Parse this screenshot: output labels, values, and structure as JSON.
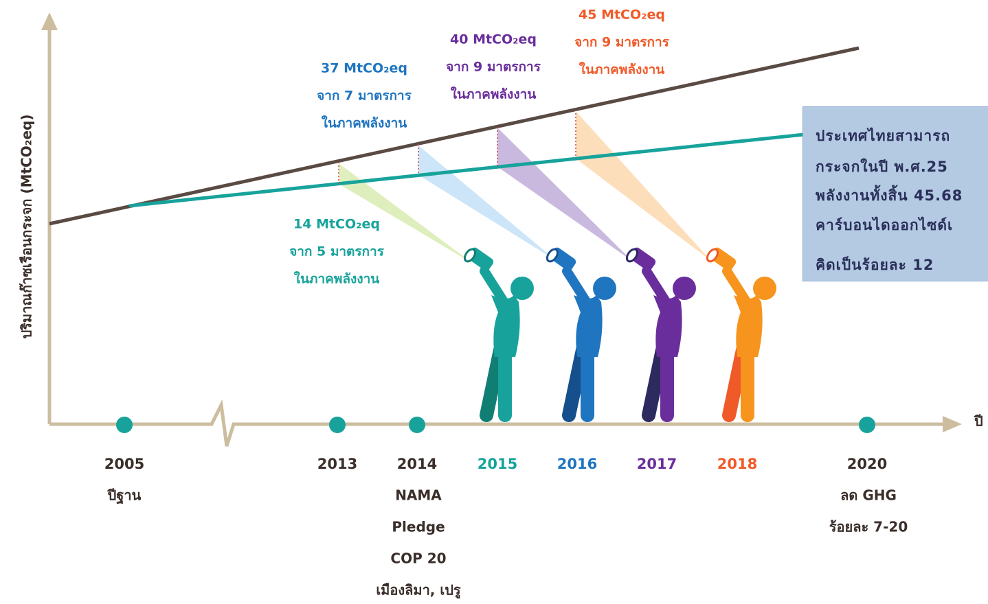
{
  "y_axis_label": "ปริมาณก๊าซเรือนกระจก (MtCO₂eq)",
  "x_axis_label": "ปี",
  "timeline": [
    {
      "year": "2005",
      "notes": [
        "ปีฐาน"
      ]
    },
    {
      "year": "2013",
      "notes": []
    },
    {
      "year": "2014",
      "notes": [
        "NAMA",
        "Pledge",
        "COP 20",
        "เมืองลิมา, เปรู"
      ]
    },
    {
      "year": "2015",
      "notes": []
    },
    {
      "year": "2016",
      "notes": []
    },
    {
      "year": "2017",
      "notes": []
    },
    {
      "year": "2018",
      "notes": []
    },
    {
      "year": "2020",
      "notes": [
        "ลด GHG",
        "ร้อยละ 7-20"
      ]
    }
  ],
  "callouts": [
    {
      "amount": "14 MtCO₂eq",
      "measures": "จาก 5 มาตรการ",
      "sector": "ในภาคพลังงาน"
    },
    {
      "amount": "37 MtCO₂eq",
      "measures": "จาก 7 มาตรการ",
      "sector": "ในภาคพลังงาน"
    },
    {
      "amount": "40 MtCO₂eq",
      "measures": "จาก 9 มาตรการ",
      "sector": "ในภาคพลังงาน"
    },
    {
      "amount": "45 MtCO₂eq",
      "measures": "จาก 9 มาตรการ",
      "sector": "ในภาคพลังงาน"
    }
  ],
  "info_box": {
    "lines": [
      "ประเทศไทยสามารถ",
      "กระจกในปี พ.ศ.25",
      "พลังงานทั้งสิ้น 45.68",
      "คาร์บอนไดออกไซด์เ",
      "คิดเป็นร้อยละ 12"
    ]
  }
}
